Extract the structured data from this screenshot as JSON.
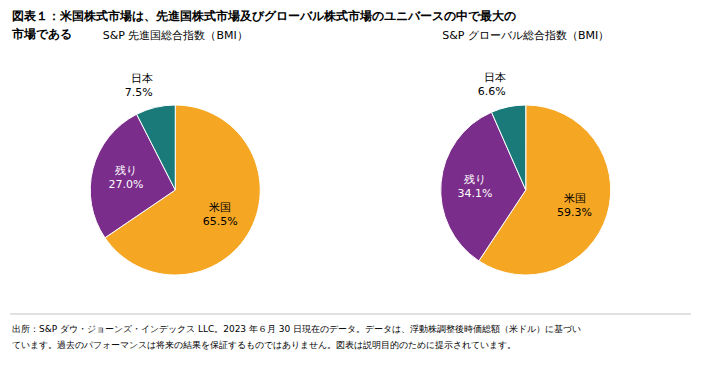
{
  "title": [
    "図表１：米国株式市場は、先進国株式市場及びグローバル株式市場のユニバースの中で最大の",
    "市場である"
  ],
  "chart_data": [
    {
      "type": "pie",
      "title": "S&P 先進国総合指数（BMI）",
      "categories": [
        "米国",
        "残り",
        "日本"
      ],
      "values": [
        65.5,
        27.0,
        7.5
      ],
      "value_labels": [
        "65.5%",
        "27.0%",
        "7.5%"
      ],
      "colors": [
        "#F5A623",
        "#7B2D8B",
        "#1A7A7A"
      ],
      "data_labels": true
    },
    {
      "type": "pie",
      "title": "S&P グローバル総合指数（BMI）",
      "categories": [
        "米国",
        "残り",
        "日本"
      ],
      "values": [
        59.3,
        34.1,
        6.6
      ],
      "value_labels": [
        "59.3%",
        "34.1%",
        "6.6%"
      ],
      "colors": [
        "#F5A623",
        "#7B2D8B",
        "#1A7A7A"
      ],
      "data_labels": true
    }
  ],
  "annotations": [
    "出所：S&P ダウ・ジョーンズ・インデックス LLC。2023 年６月 30 日現在のデータ。データは、浮動株調整後時価総額（米ドル）に基づい",
    "ています。過去のパフォーマンスは将来の結果を保証するものではありません。図表は説明目的のために提示されています。"
  ]
}
